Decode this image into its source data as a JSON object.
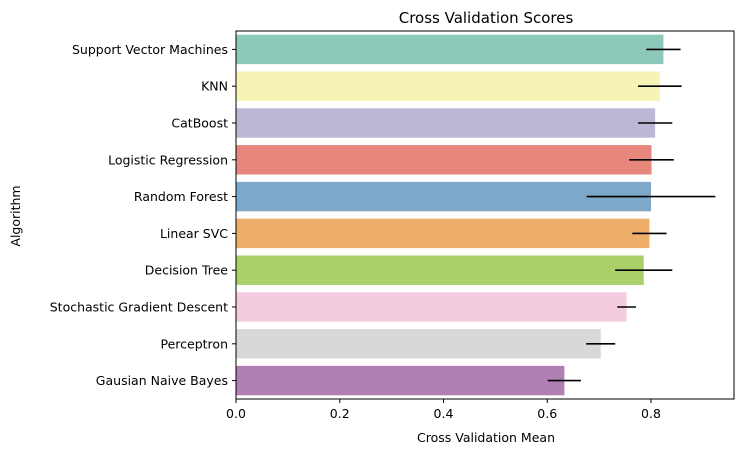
{
  "chart_data": {
    "type": "bar",
    "orientation": "horizontal",
    "title": "Cross Validation Scores",
    "xlabel": "Cross Validation Mean",
    "ylabel": "Algorithm",
    "xlim": [
      0,
      0.96
    ],
    "xticks": [
      0.0,
      0.2,
      0.4,
      0.6,
      0.8
    ],
    "xtick_labels": [
      "0.0",
      "0.2",
      "0.4",
      "0.6",
      "0.8"
    ],
    "grid": false,
    "categories": [
      "Support Vector Machines",
      "KNN",
      "CatBoost",
      "Logistic Regression",
      "Random Forest",
      "Linear SVC",
      "Decision Tree",
      "Stochastic Gradient Descent",
      "Perceptron",
      "Gausian Naive Bayes"
    ],
    "values": [
      0.824,
      0.817,
      0.808,
      0.801,
      0.8,
      0.797,
      0.786,
      0.753,
      0.703,
      0.633
    ],
    "errors": [
      0.033,
      0.042,
      0.033,
      0.043,
      0.124,
      0.033,
      0.055,
      0.018,
      0.028,
      0.032
    ],
    "colors": [
      "#8dc9bb",
      "#f6f4b4",
      "#bdb7d6",
      "#e8877c",
      "#7ea8c9",
      "#efad6a",
      "#a9d06b",
      "#f5cbe0",
      "#d8d8d8",
      "#b17fb3"
    ]
  }
}
